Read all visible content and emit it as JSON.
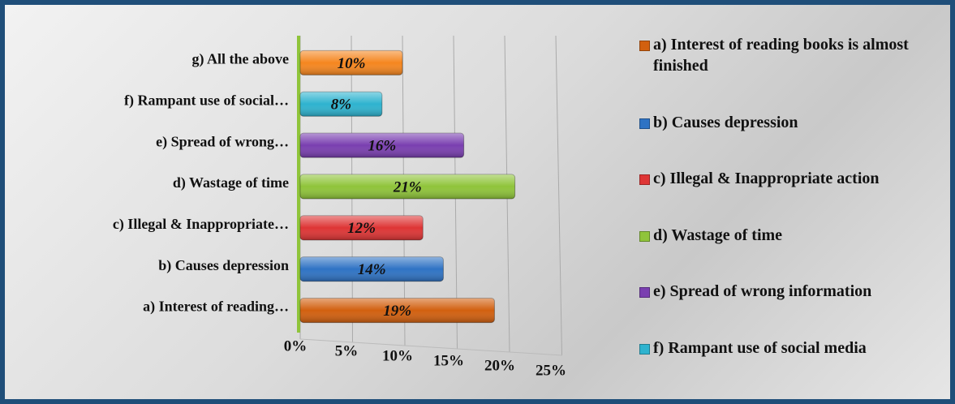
{
  "chart_data": {
    "type": "bar",
    "orientation": "horizontal",
    "categories": [
      "a) Interest of reading…",
      "b) Causes depression",
      "c) Illegal & Inappropriate…",
      "d) Wastage of time",
      "e) Spread of wrong…",
      "f) Rampant use of social…",
      "g) All the above"
    ],
    "values": [
      19,
      14,
      12,
      21,
      16,
      8,
      10
    ],
    "value_labels": [
      "19%",
      "14%",
      "12%",
      "21%",
      "16%",
      "8%",
      "10%"
    ],
    "colors": [
      "#d2600f",
      "#2f73c4",
      "#de3535",
      "#8fc43a",
      "#7a3fb0",
      "#2eb3cf",
      "#f5861f"
    ],
    "legend": [
      "a) Interest of reading books is almost finished",
      "b) Causes depression",
      "c) Illegal & Inappropriate action",
      "d) Wastage of time",
      "e) Spread of wrong information",
      "f) Rampant use of social media"
    ],
    "xlim": [
      0,
      25
    ],
    "xticks": [
      {
        "value": 0,
        "label": "0%"
      },
      {
        "value": 5,
        "label": "5%"
      },
      {
        "value": 10,
        "label": "10%"
      },
      {
        "value": 15,
        "label": "15%"
      },
      {
        "value": 20,
        "label": "20%"
      },
      {
        "value": 25,
        "label": "25%"
      }
    ],
    "grid": true
  }
}
